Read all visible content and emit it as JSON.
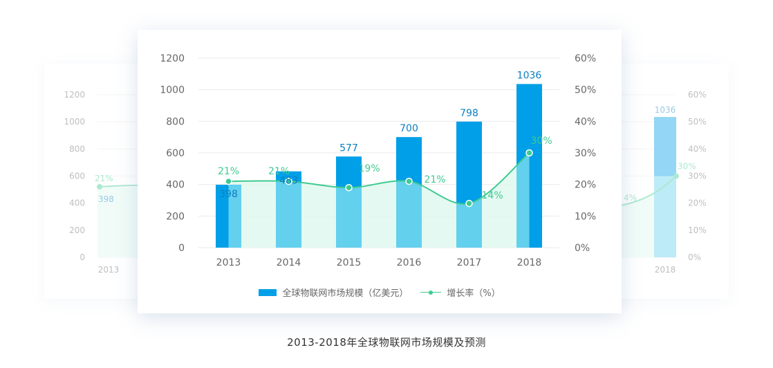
{
  "caption": "2013-2018年全球物联网市场规模及预测",
  "colors": {
    "bar_top": "#009fe8",
    "bar_under_curve": "#63d0ee",
    "line": "#3dcb91",
    "area_fill": "#dff8ef",
    "value_label": "#0b7ec0",
    "axis_text": "#666666",
    "grid": "#e9e9e9"
  },
  "chart_data": {
    "type": "bar",
    "categories": [
      "2013",
      "2014",
      "2015",
      "2016",
      "2017",
      "2018"
    ],
    "series": [
      {
        "name": "全球物联网市场规模（亿美元）",
        "type": "bar",
        "axis": "left",
        "values": [
          398,
          483,
          577,
          700,
          798,
          1036
        ]
      },
      {
        "name": "增长率（%）",
        "type": "line",
        "axis": "right",
        "values": [
          21,
          21,
          19,
          21,
          14,
          30
        ],
        "value_labels": [
          "21%",
          "21%",
          "19%",
          "21%",
          "14%",
          "30%"
        ]
      }
    ],
    "y_left": {
      "range": [
        0,
        1200
      ],
      "ticks": [
        "0",
        "200",
        "400",
        "600",
        "800",
        "1000",
        "1200"
      ]
    },
    "y_right": {
      "range": [
        0,
        60
      ],
      "ticks": [
        "0%",
        "10%",
        "20%",
        "30%",
        "40%",
        "50%",
        "60%"
      ]
    },
    "grid": true,
    "legend": "bottom"
  },
  "legend": {
    "bar_label": "全球物联网市场规模（亿美元）",
    "line_label": "增长率（%）"
  },
  "back_left": {
    "y_ticks": [
      "0",
      "200",
      "400",
      "600",
      "800",
      "1000",
      "1200"
    ],
    "category": "2013",
    "bar_value": "398",
    "rate_label": "21%"
  },
  "back_right": {
    "y_ticks": [
      "0%",
      "10%",
      "20%",
      "30%",
      "40%",
      "50%",
      "60%"
    ],
    "category": "2018",
    "bar_value": "1036",
    "rate_label": "30%",
    "rate_label_partial": "4%"
  }
}
